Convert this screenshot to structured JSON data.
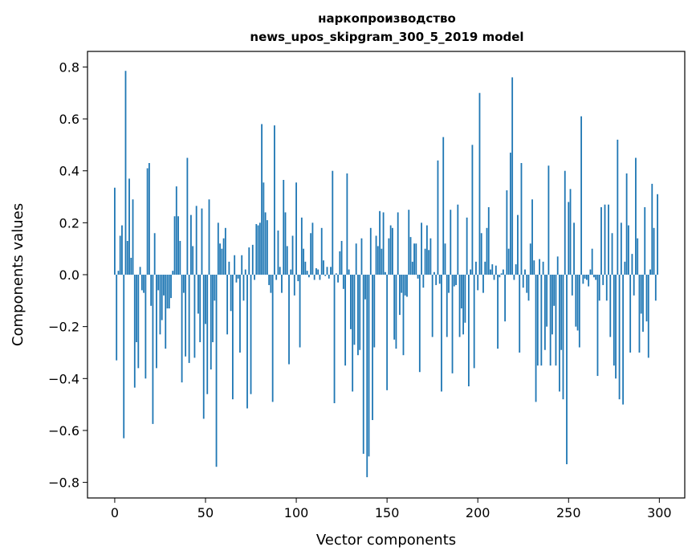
{
  "chart_data": {
    "type": "bar",
    "title": [
      "наркопроизводство",
      "news_upos_skipgram_300_5_2019 model"
    ],
    "xlabel": "Vector components",
    "ylabel": "Components values",
    "xlim": [
      -15,
      314
    ],
    "ylim": [
      -0.86,
      0.86
    ],
    "xticks": [
      0,
      50,
      100,
      150,
      200,
      250,
      300
    ],
    "yticks": [
      -0.8,
      -0.6,
      -0.4,
      -0.2,
      0.0,
      0.2,
      0.4,
      0.6,
      0.8
    ],
    "xtick_labels": [
      "0",
      "50",
      "100",
      "150",
      "200",
      "250",
      "300"
    ],
    "ytick_labels": [
      "−0.8",
      "−0.6",
      "−0.4",
      "−0.2",
      "0.0",
      "0.2",
      "0.4",
      "0.6",
      "0.8"
    ],
    "grid": false,
    "color": "#1f77b4",
    "x": "0..299",
    "values": [
      0.335,
      -0.33,
      0.015,
      0.15,
      0.19,
      -0.63,
      0.785,
      0.13,
      0.37,
      0.065,
      0.29,
      -0.435,
      -0.26,
      -0.36,
      0.03,
      -0.06,
      -0.07,
      -0.4,
      0.41,
      0.43,
      -0.12,
      -0.575,
      0.16,
      -0.36,
      -0.06,
      -0.23,
      -0.175,
      -0.08,
      -0.285,
      -0.13,
      -0.13,
      -0.09,
      0.015,
      0.225,
      0.34,
      0.225,
      0.13,
      -0.415,
      -0.07,
      -0.315,
      0.45,
      -0.34,
      0.23,
      0.11,
      -0.32,
      0.265,
      -0.15,
      -0.26,
      0.255,
      -0.555,
      -0.19,
      -0.46,
      0.29,
      -0.365,
      -0.26,
      -0.1,
      -0.74,
      0.2,
      0.12,
      0.1,
      0.14,
      0.18,
      -0.23,
      0.05,
      -0.14,
      -0.48,
      0.075,
      -0.03,
      -0.015,
      -0.3,
      0.075,
      -0.1,
      0.02,
      -0.515,
      0.105,
      -0.46,
      0.115,
      -0.02,
      0.195,
      0.19,
      0.2,
      0.58,
      0.355,
      0.24,
      0.21,
      -0.04,
      -0.07,
      -0.49,
      0.575,
      -0.02,
      0.17,
      0.03,
      -0.07,
      0.365,
      0.24,
      0.11,
      -0.345,
      0.02,
      0.15,
      -0.08,
      0.355,
      -0.025,
      -0.28,
      0.22,
      0.1,
      0.05,
      0.015,
      -0.01,
      0.16,
      0.2,
      -0.02,
      0.025,
      0.02,
      -0.02,
      0.18,
      0.055,
      -0.005,
      0.03,
      -0.015,
      0.03,
      0.4,
      -0.495,
      0.005,
      -0.03,
      0.09,
      0.13,
      -0.055,
      -0.35,
      0.39,
      0.02,
      -0.21,
      -0.45,
      -0.27,
      0.12,
      -0.31,
      -0.29,
      0.14,
      -0.69,
      -0.095,
      -0.78,
      -0.7,
      0.18,
      -0.56,
      -0.28,
      0.15,
      0.11,
      0.245,
      0.1,
      0.24,
      0.01,
      -0.445,
      0.14,
      0.19,
      0.18,
      -0.25,
      -0.285,
      0.24,
      -0.155,
      -0.07,
      -0.31,
      -0.08,
      -0.085,
      0.25,
      0.145,
      0.05,
      0.12,
      0.12,
      -0.015,
      -0.375,
      0.2,
      -0.05,
      0.1,
      0.19,
      0.095,
      0.14,
      -0.24,
      0.01,
      -0.04,
      0.44,
      -0.035,
      -0.45,
      0.53,
      0.12,
      -0.24,
      -0.07,
      0.25,
      -0.38,
      -0.045,
      -0.04,
      0.27,
      -0.24,
      -0.13,
      -0.23,
      -0.185,
      0.22,
      -0.43,
      0.02,
      0.5,
      -0.36,
      0.05,
      -0.06,
      0.7,
      0.16,
      -0.07,
      0.05,
      0.18,
      0.26,
      0.02,
      0.04,
      -0.02,
      0.035,
      -0.285,
      -0.01,
      0.005,
      0.02,
      -0.18,
      0.325,
      0.1,
      0.47,
      0.76,
      -0.02,
      0.04,
      0.23,
      -0.3,
      0.43,
      -0.05,
      0.02,
      -0.07,
      -0.1,
      0.12,
      0.29,
      0.055,
      -0.49,
      -0.35,
      0.06,
      -0.35,
      0.05,
      -0.29,
      -0.2,
      0.42,
      -0.35,
      -0.23,
      -0.12,
      -0.35,
      0.07,
      -0.45,
      -0.29,
      -0.48,
      0.4,
      -0.73,
      0.28,
      0.33,
      -0.08,
      0.2,
      -0.2,
      -0.215,
      -0.28,
      0.61,
      -0.035,
      -0.015,
      -0.02,
      -0.045,
      0.02,
      0.1,
      -0.01,
      -0.02,
      -0.39,
      -0.1,
      0.26,
      -0.04,
      0.27,
      -0.1,
      0.27,
      -0.24,
      0.16,
      -0.35,
      -0.4,
      0.52,
      -0.48,
      0.2,
      -0.5,
      0.05,
      0.39,
      0.19,
      -0.3,
      0.08,
      -0.08,
      0.45,
      0.14,
      -0.3,
      -0.15,
      -0.22,
      0.26,
      -0.18,
      -0.32,
      0.02,
      0.35,
      0.18,
      -0.1,
      0.31
    ]
  }
}
